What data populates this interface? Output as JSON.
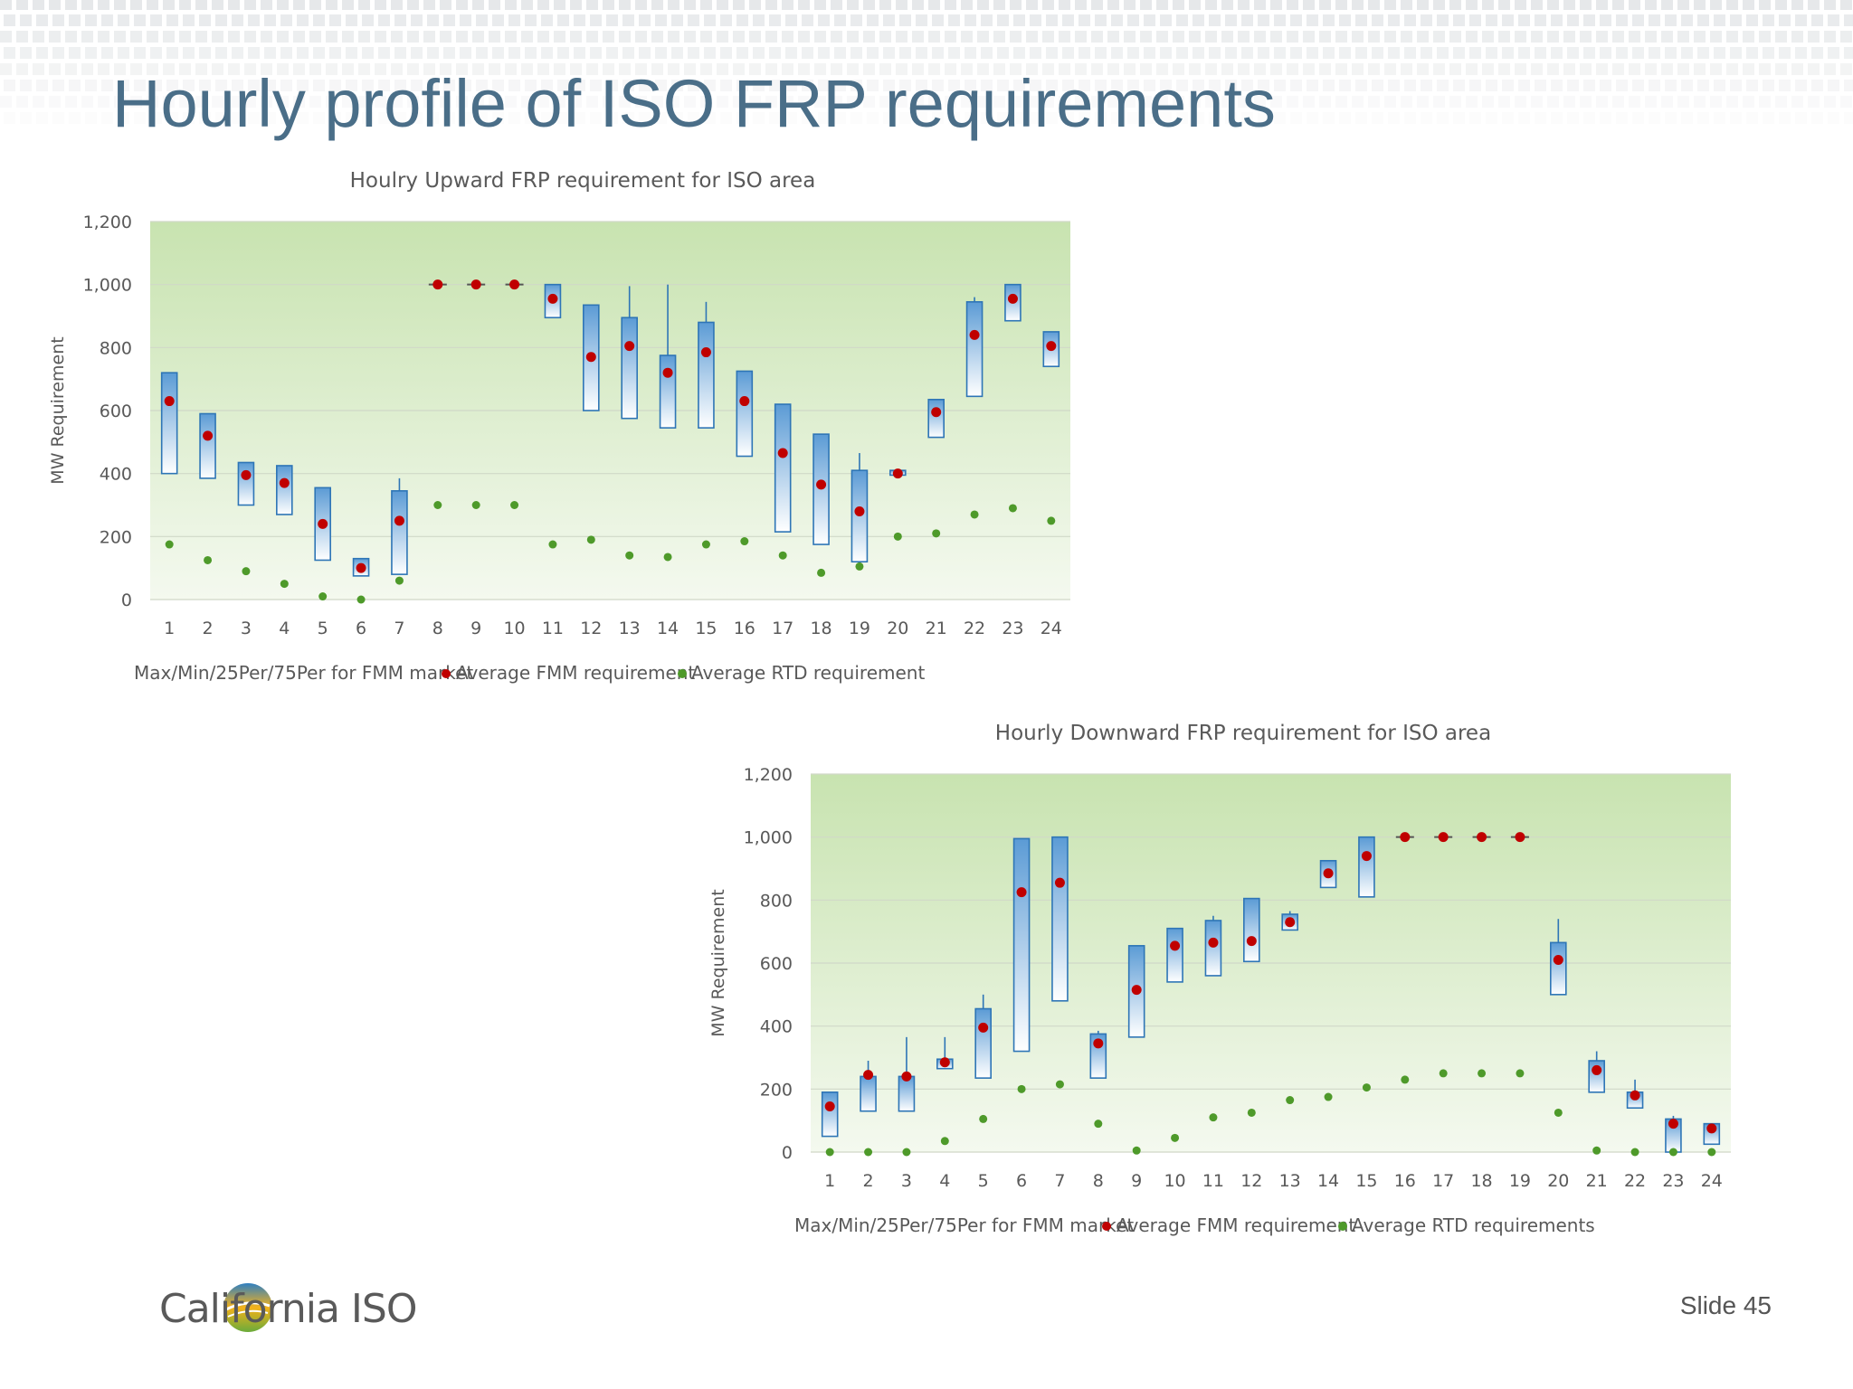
{
  "slide": {
    "title": "Hourly profile of ISO FRP requirements",
    "slide_number": "Slide 45",
    "logo_text": "California ISO",
    "title_color": "#4a6e88"
  },
  "colors": {
    "fmm_dot": "#c00000",
    "rtd_dot": "#4e9a2a",
    "box_edge": "#2e75b6",
    "box_fill_top": "#5b9bd5",
    "box_fill_bottom": "#ffffff",
    "plot_bg_top": "#c8e3b0",
    "plot_bg_bottom": "#f4f9ef"
  },
  "chart_data": [
    {
      "type": "box",
      "title": "Houlry Upward  FRP requirement for ISO area",
      "ylabel": "MW Requirement",
      "xlabel": "",
      "ylim": [
        0,
        1200
      ],
      "yticks": [
        0,
        200,
        400,
        600,
        800,
        1000,
        1200
      ],
      "ytick_labels": [
        "0",
        "200",
        "400",
        "600",
        "800",
        "1,000",
        "1,200"
      ],
      "grid": true,
      "categories": [
        "1",
        "2",
        "3",
        "4",
        "5",
        "6",
        "7",
        "8",
        "9",
        "10",
        "11",
        "12",
        "13",
        "14",
        "15",
        "16",
        "17",
        "18",
        "19",
        "20",
        "21",
        "22",
        "23",
        "24"
      ],
      "legend": {
        "position": "bottom",
        "entries": [
          "Max/Min/25Per/75Per for FMM market",
          "Average FMM requirement",
          "Average RTD requirement"
        ]
      },
      "series": [
        {
          "name": "Max/Min/25Per/75Per for FMM market",
          "boxes": [
            {
              "min": 400,
              "q1": 400,
              "q3": 720,
              "max": 720
            },
            {
              "min": 385,
              "q1": 385,
              "q3": 590,
              "max": 590
            },
            {
              "min": 300,
              "q1": 300,
              "q3": 435,
              "max": 435
            },
            {
              "min": 270,
              "q1": 270,
              "q3": 425,
              "max": 425
            },
            {
              "min": 125,
              "q1": 125,
              "q3": 355,
              "max": 355
            },
            {
              "min": 75,
              "q1": 75,
              "q3": 130,
              "max": 130
            },
            {
              "min": 80,
              "q1": 80,
              "q3": 345,
              "max": 385
            },
            {
              "min": 1000,
              "q1": 1000,
              "q3": 1000,
              "max": 1000
            },
            {
              "min": 1000,
              "q1": 1000,
              "q3": 1000,
              "max": 1000
            },
            {
              "min": 1000,
              "q1": 1000,
              "q3": 1000,
              "max": 1000
            },
            {
              "min": 895,
              "q1": 895,
              "q3": 1000,
              "max": 1000
            },
            {
              "min": 600,
              "q1": 600,
              "q3": 935,
              "max": 935
            },
            {
              "min": 575,
              "q1": 575,
              "q3": 895,
              "max": 995
            },
            {
              "min": 545,
              "q1": 545,
              "q3": 775,
              "max": 1000
            },
            {
              "min": 545,
              "q1": 545,
              "q3": 880,
              "max": 945
            },
            {
              "min": 455,
              "q1": 455,
              "q3": 725,
              "max": 725
            },
            {
              "min": 215,
              "q1": 215,
              "q3": 620,
              "max": 620
            },
            {
              "min": 175,
              "q1": 175,
              "q3": 525,
              "max": 525
            },
            {
              "min": 120,
              "q1": 120,
              "q3": 410,
              "max": 465
            },
            {
              "min": 395,
              "q1": 395,
              "q3": 410,
              "max": 410
            },
            {
              "min": 515,
              "q1": 515,
              "q3": 635,
              "max": 635
            },
            {
              "min": 645,
              "q1": 645,
              "q3": 945,
              "max": 960
            },
            {
              "min": 885,
              "q1": 885,
              "q3": 1000,
              "max": 1000
            },
            {
              "min": 740,
              "q1": 740,
              "q3": 850,
              "max": 850
            }
          ]
        },
        {
          "name": "Average FMM requirement",
          "values": [
            630,
            520,
            395,
            370,
            240,
            100,
            250,
            1000,
            1000,
            1000,
            955,
            770,
            805,
            720,
            785,
            630,
            465,
            365,
            280,
            400,
            595,
            840,
            955,
            805
          ]
        },
        {
          "name": "Average RTD requirement",
          "values": [
            175,
            125,
            90,
            50,
            10,
            0,
            60,
            300,
            300,
            300,
            175,
            190,
            140,
            135,
            175,
            185,
            140,
            85,
            105,
            200,
            210,
            270,
            290,
            250
          ]
        }
      ]
    },
    {
      "type": "box",
      "title": "Hourly  Downward  FRP requirement for ISO area",
      "ylabel": "MW Requirement",
      "xlabel": "",
      "ylim": [
        0,
        1200
      ],
      "yticks": [
        0,
        200,
        400,
        600,
        800,
        1000,
        1200
      ],
      "ytick_labels": [
        "0",
        "200",
        "400",
        "600",
        "800",
        "1,000",
        "1,200"
      ],
      "grid": true,
      "categories": [
        "1",
        "2",
        "3",
        "4",
        "5",
        "6",
        "7",
        "8",
        "9",
        "10",
        "11",
        "12",
        "13",
        "14",
        "15",
        "16",
        "17",
        "18",
        "19",
        "20",
        "21",
        "22",
        "23",
        "24"
      ],
      "legend": {
        "position": "bottom",
        "entries": [
          "Max/Min/25Per/75Per for FMM market",
          "Average FMM requirement",
          "Average RTD requirements"
        ]
      },
      "series": [
        {
          "name": "Max/Min/25Per/75Per for FMM market",
          "boxes": [
            {
              "min": 50,
              "q1": 50,
              "q3": 190,
              "max": 190
            },
            {
              "min": 130,
              "q1": 130,
              "q3": 240,
              "max": 290
            },
            {
              "min": 130,
              "q1": 130,
              "q3": 240,
              "max": 365
            },
            {
              "min": 265,
              "q1": 265,
              "q3": 295,
              "max": 365
            },
            {
              "min": 235,
              "q1": 235,
              "q3": 455,
              "max": 500
            },
            {
              "min": 320,
              "q1": 320,
              "q3": 995,
              "max": 995
            },
            {
              "min": 480,
              "q1": 480,
              "q3": 1000,
              "max": 1000
            },
            {
              "min": 235,
              "q1": 235,
              "q3": 375,
              "max": 385
            },
            {
              "min": 365,
              "q1": 365,
              "q3": 655,
              "max": 655
            },
            {
              "min": 540,
              "q1": 540,
              "q3": 710,
              "max": 710
            },
            {
              "min": 560,
              "q1": 560,
              "q3": 735,
              "max": 750
            },
            {
              "min": 605,
              "q1": 605,
              "q3": 805,
              "max": 805
            },
            {
              "min": 705,
              "q1": 705,
              "q3": 755,
              "max": 765
            },
            {
              "min": 840,
              "q1": 840,
              "q3": 925,
              "max": 925
            },
            {
              "min": 810,
              "q1": 810,
              "q3": 1000,
              "max": 1000
            },
            {
              "min": 1000,
              "q1": 1000,
              "q3": 1000,
              "max": 1000
            },
            {
              "min": 1000,
              "q1": 1000,
              "q3": 1000,
              "max": 1000
            },
            {
              "min": 1000,
              "q1": 1000,
              "q3": 1000,
              "max": 1000
            },
            {
              "min": 1000,
              "q1": 1000,
              "q3": 1000,
              "max": 1000
            },
            {
              "min": 500,
              "q1": 500,
              "q3": 665,
              "max": 740
            },
            {
              "min": 190,
              "q1": 190,
              "q3": 290,
              "max": 320
            },
            {
              "min": 140,
              "q1": 140,
              "q3": 190,
              "max": 230
            },
            {
              "min": 0,
              "q1": 0,
              "q3": 105,
              "max": 115
            },
            {
              "min": 25,
              "q1": 25,
              "q3": 90,
              "max": 90
            }
          ]
        },
        {
          "name": "Average FMM requirement",
          "values": [
            145,
            245,
            240,
            285,
            395,
            825,
            855,
            345,
            515,
            655,
            665,
            670,
            730,
            885,
            940,
            1000,
            1000,
            1000,
            1000,
            610,
            260,
            180,
            90,
            75
          ]
        },
        {
          "name": "Average RTD requirements",
          "values": [
            0,
            0,
            0,
            35,
            105,
            200,
            215,
            90,
            5,
            45,
            110,
            125,
            165,
            175,
            205,
            230,
            250,
            250,
            250,
            125,
            5,
            0,
            0,
            0
          ]
        }
      ]
    }
  ]
}
